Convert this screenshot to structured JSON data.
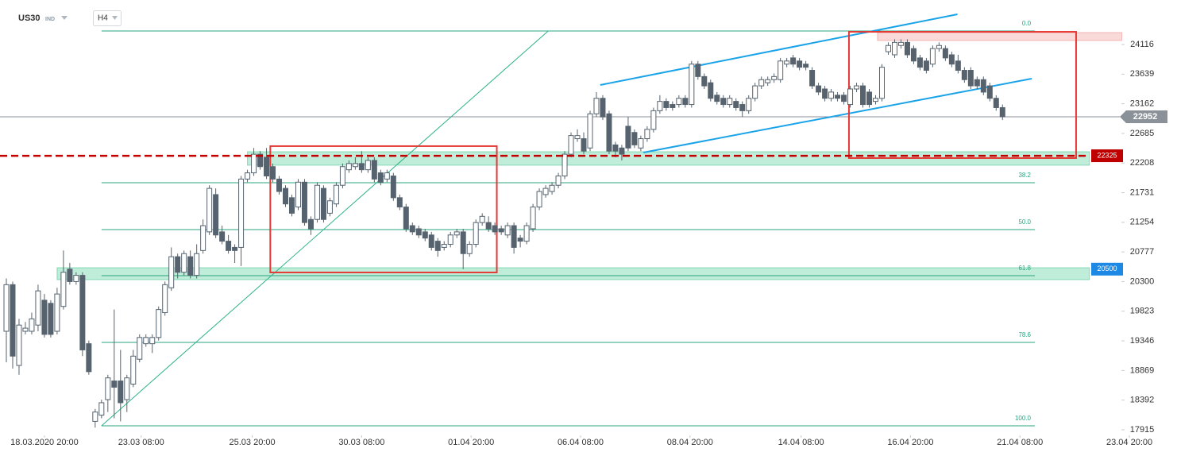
{
  "chart_data": {
    "type": "candlestick",
    "symbol": "US30",
    "symbol_type": "IND",
    "timeframe": "H4",
    "xlim": [
      -1,
      183
    ],
    "xticks": [
      {
        "value": 6,
        "label": "18.03.2020 20:00"
      },
      {
        "value": 21.25,
        "label": "23.03 08:00"
      },
      {
        "value": 38.75,
        "label": "25.03 20:00"
      },
      {
        "value": 56,
        "label": "30.03 08:00"
      },
      {
        "value": 73.25,
        "label": "01.04 20:00"
      },
      {
        "value": 90.5,
        "label": "06.04 08:00"
      },
      {
        "value": 107.75,
        "label": "08.04 20:00"
      },
      {
        "value": 125.25,
        "label": "14.04 08:00"
      },
      {
        "value": 142.5,
        "label": "16.04 20:00"
      },
      {
        "value": 159.75,
        "label": "21.04 08:00"
      },
      {
        "value": 177,
        "label": "23.04 20:00"
      }
    ],
    "ylim": [
      17825,
      24832
    ],
    "yticks": [
      17915,
      18392,
      18869,
      19346,
      19823,
      20300,
      20777,
      21254,
      21731,
      22208,
      22685,
      23162,
      23639,
      24116
    ],
    "up_color": "#ffffff",
    "down_color": "#56636e",
    "outline_color": "#56636e",
    "series": {
      "open": [
        19500,
        20250,
        18950,
        19500,
        19500,
        19600,
        20000,
        19950,
        19500,
        19900,
        20500,
        20300,
        20400,
        19300,
        18050,
        18150,
        18400,
        18700,
        18700,
        18400,
        18650,
        19050,
        19300,
        19300,
        19400,
        19800,
        20200,
        20700,
        20450,
        20700,
        20400,
        20800,
        21100,
        21700,
        21100,
        20950,
        20850,
        20850,
        21950,
        22050,
        22350,
        22300,
        22150,
        21950,
        21800,
        21650,
        21500,
        21900,
        21300,
        21300,
        21800,
        21400,
        21550,
        21850,
        22100,
        22150,
        22200,
        22100,
        22250,
        22050,
        21950,
        22000,
        21650,
        21500,
        21200,
        21150,
        21100,
        21050,
        20950,
        20850,
        20900,
        21050,
        21100,
        20750,
        20900,
        21250,
        21250,
        21200,
        21150,
        21050,
        21200,
        21000,
        20950,
        21150,
        21500,
        21700,
        21750,
        21850,
        22000,
        22350,
        22600,
        22600,
        22450,
        23000,
        23250,
        23000,
        22500,
        22450,
        22800,
        22700,
        22450,
        22600,
        22750,
        23050,
        23200,
        23150,
        23150,
        23250,
        23150,
        23800,
        23600,
        23500,
        23300,
        23250,
        23150,
        23200,
        23150,
        23050,
        23250,
        23450,
        23500,
        23550,
        23550,
        23800,
        23900,
        23850,
        23800,
        23700,
        23450,
        23400,
        23250,
        23300,
        23300,
        23150,
        23400,
        23450,
        23350,
        23200,
        23250,
        24000,
        23950,
        24100,
        24150,
        24050,
        23900,
        23850,
        23800,
        24050,
        24050,
        23950,
        23850,
        23700,
        23700,
        23550,
        23550,
        23450,
        23250,
        23100
      ],
      "high": [
        20350,
        20300,
        19700,
        19650,
        19800,
        20250,
        20100,
        20000,
        20200,
        20800,
        20600,
        20450,
        20450,
        19350,
        18250,
        18400,
        18800,
        19850,
        19200,
        18800,
        19200,
        19450,
        19450,
        19450,
        19900,
        20300,
        20850,
        20750,
        20800,
        20800,
        20900,
        21300,
        21850,
        21800,
        21200,
        21050,
        20900,
        22000,
        22100,
        22450,
        22400,
        22450,
        22200,
        22000,
        21850,
        21700,
        21950,
        21950,
        21350,
        21900,
        21850,
        21650,
        21900,
        22200,
        22250,
        22300,
        22400,
        22300,
        22300,
        22100,
        22100,
        22050,
        21700,
        21550,
        21250,
        21200,
        21150,
        21100,
        21000,
        20950,
        21100,
        21150,
        21150,
        20950,
        21300,
        21400,
        21350,
        21250,
        21200,
        21250,
        21250,
        21050,
        21250,
        21550,
        21800,
        21850,
        21900,
        22050,
        22400,
        22700,
        22750,
        22700,
        23050,
        23350,
        23300,
        23050,
        22550,
        22500,
        22950,
        22750,
        22650,
        22800,
        23100,
        23300,
        23250,
        23200,
        23300,
        23300,
        23850,
        23850,
        23650,
        23550,
        23350,
        23300,
        23300,
        23250,
        23200,
        23300,
        23500,
        23600,
        23600,
        23650,
        23900,
        23900,
        23950,
        23900,
        23850,
        23750,
        23500,
        23450,
        23400,
        23350,
        23350,
        23450,
        23500,
        23500,
        23400,
        23300,
        23800,
        24150,
        24200,
        24200,
        24200,
        24100,
        23950,
        23900,
        24100,
        24150,
        24100,
        24000,
        23950,
        23750,
        23750,
        23600,
        23600,
        23500,
        23300,
        23150
      ],
      "low": [
        19000,
        18900,
        18800,
        19450,
        19450,
        19500,
        19400,
        19400,
        19450,
        19850,
        20250,
        20250,
        19100,
        18800,
        17950,
        18100,
        18200,
        18100,
        18050,
        18200,
        18600,
        19000,
        19250,
        19150,
        19350,
        19750,
        20150,
        20350,
        20400,
        20350,
        20350,
        20750,
        21050,
        21000,
        20900,
        20750,
        20600,
        20550,
        21900,
        22000,
        22100,
        21950,
        21900,
        21700,
        21500,
        21350,
        21450,
        21200,
        21050,
        21250,
        21250,
        21350,
        21500,
        21800,
        22050,
        22100,
        22050,
        22050,
        21900,
        21850,
        21900,
        21600,
        21450,
        21100,
        21050,
        21000,
        20950,
        20800,
        20700,
        20800,
        20850,
        21000,
        20500,
        20700,
        20850,
        21200,
        21100,
        21050,
        21050,
        21000,
        20750,
        20850,
        20900,
        21100,
        21450,
        21650,
        21700,
        21800,
        21950,
        22300,
        22550,
        22350,
        22400,
        22950,
        22900,
        22350,
        22300,
        22250,
        22400,
        22450,
        22400,
        22550,
        22700,
        23000,
        23050,
        23050,
        23100,
        23100,
        23100,
        23550,
        23400,
        23200,
        23150,
        23100,
        23100,
        23050,
        22950,
        23000,
        23200,
        23400,
        23450,
        23500,
        23500,
        23750,
        23750,
        23700,
        23700,
        23400,
        23300,
        23200,
        23200,
        23200,
        23150,
        23100,
        23350,
        23100,
        23100,
        23150,
        23200,
        23950,
        23900,
        24050,
        23900,
        23800,
        23700,
        23650,
        23750,
        24000,
        23850,
        23750,
        23650,
        23500,
        23400,
        23400,
        23300,
        23200,
        23050,
        22900
      ],
      "close": [
        20250,
        19100,
        19600,
        19550,
        19700,
        20150,
        19450,
        19450,
        20100,
        20450,
        20300,
        20400,
        19200,
        18850,
        18200,
        18350,
        18750,
        18600,
        18350,
        18750,
        19100,
        19400,
        19400,
        19400,
        19850,
        20250,
        20700,
        20450,
        20750,
        20400,
        20750,
        21200,
        21800,
        21050,
        20950,
        20800,
        20800,
        21950,
        22050,
        22350,
        22150,
        22000,
        21950,
        21750,
        21550,
        21400,
        21900,
        21250,
        21150,
        21850,
        21300,
        21600,
        21850,
        22150,
        22200,
        22200,
        22100,
        22250,
        21950,
        21900,
        22050,
        21650,
        21500,
        21150,
        21100,
        21050,
        21000,
        20850,
        20800,
        20900,
        21050,
        21100,
        20750,
        20900,
        21250,
        21350,
        21150,
        21100,
        21100,
        21200,
        20850,
        20950,
        21200,
        21500,
        21750,
        21800,
        21850,
        22000,
        22350,
        22650,
        22650,
        22400,
        23000,
        23250,
        22950,
        22400,
        22400,
        22350,
        22450,
        22500,
        22600,
        22750,
        23050,
        23200,
        23100,
        23100,
        23250,
        23150,
        23800,
        23600,
        23450,
        23250,
        23200,
        23150,
        23250,
        23100,
        23050,
        23250,
        23450,
        23550,
        23550,
        23600,
        23850,
        23850,
        23800,
        23750,
        23750,
        23450,
        23350,
        23250,
        23350,
        23250,
        23200,
        23400,
        23450,
        23150,
        23150,
        23250,
        23750,
        24100,
        24150,
        24150,
        23950,
        23850,
        23750,
        23700,
        24050,
        24100,
        23900,
        23800,
        23700,
        23550,
        23450,
        23450,
        23350,
        23250,
        23100,
        22952
      ]
    },
    "fibonacci": {
      "color": "#2aa57f",
      "x": [
        15,
        162.1
      ],
      "levels": [
        {
          "label": "0.0",
          "value": 24333
        },
        {
          "label": "38.2",
          "value": 21891
        },
        {
          "label": "50.0",
          "value": 21137
        },
        {
          "label": "61.8",
          "value": 20395
        },
        {
          "label": "78.6",
          "value": 19321
        },
        {
          "label": "100.0",
          "value": 17979
        }
      ]
    },
    "trend_lines": [
      {
        "color": "#2bb38a",
        "width": 1,
        "x": [
          15,
          85.4
        ],
        "y": [
          17979,
          24333
        ]
      },
      {
        "color": "#1aa3e8",
        "width": 2,
        "x": [
          93.6,
          149.9
        ],
        "y": [
          23464,
          24602
        ]
      },
      {
        "color": "#1aa3e8",
        "width": 2,
        "x": [
          100.4,
          161.6
        ],
        "y": [
          22377,
          23566
        ]
      }
    ],
    "zones": [
      {
        "color": "#2fbf84",
        "x": [
          38,
          170.7
        ],
        "y": [
          22173,
          22390
        ]
      },
      {
        "color": "#2fbf84",
        "x": [
          8,
          170.7
        ],
        "y": [
          20331,
          20523
        ]
      },
      {
        "color": "#f08080",
        "x": [
          137.3,
          175.8
        ],
        "y": [
          24180,
          24308
        ]
      }
    ],
    "boxes": [
      {
        "color": "#e53935",
        "x": [
          41.6,
          77.3
        ],
        "y": [
          20447,
          22480
        ]
      },
      {
        "color": "#e53935",
        "x": [
          132.8,
          168.6
        ],
        "y": [
          22288,
          24320
        ]
      }
    ],
    "levels": [
      {
        "value": 22325,
        "color": "#c00000",
        "dashed": true
      },
      {
        "value": 20500,
        "color": "#1e88e5",
        "dashed": false
      }
    ],
    "current_price_color": "#8a9199"
  }
}
